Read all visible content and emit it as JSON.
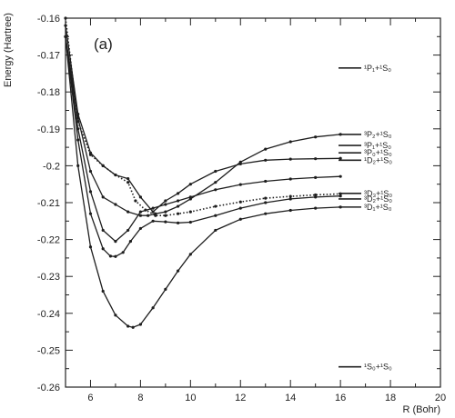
{
  "chart_data": {
    "type": "line",
    "panel_label": "(a)",
    "xlabel": "R (Bohr)",
    "ylabel": "Energy (Hartree)",
    "xlim": [
      5,
      20
    ],
    "ylim": [
      -0.26,
      -0.16
    ],
    "x_ticks": [
      6,
      8,
      10,
      12,
      14,
      16,
      18,
      20
    ],
    "x_tick_labels": [
      "6",
      "8",
      "10",
      "12",
      "14",
      "16",
      "18",
      "20"
    ],
    "y_ticks": [
      -0.16,
      -0.17,
      -0.18,
      -0.19,
      -0.2,
      -0.21,
      -0.22,
      -0.23,
      -0.24,
      -0.25,
      -0.26
    ],
    "y_tick_labels": [
      "-0.16",
      "-0.17",
      "-0.18",
      "-0.19",
      "-0.2",
      "-0.21",
      "-0.22",
      "-0.23",
      "-0.24",
      "-0.25",
      "-0.26"
    ],
    "asymptote_labels": [
      {
        "label": "¹P₁+¹S₀",
        "y": -0.1735
      },
      {
        "label": "³P₂+¹S₀",
        "y": -0.1915
      },
      {
        "label": "³P₁+¹S₀",
        "y": -0.1945
      },
      {
        "label": "³P₀+¹S₀",
        "y": -0.1965
      },
      {
        "label": "¹D₂+¹S₀",
        "y": -0.1985
      },
      {
        "label": "³D₃+¹S₀",
        "y": -0.2075
      },
      {
        "label": "³D₂+¹S₀",
        "y": -0.209
      },
      {
        "label": "³D₁+¹S₀",
        "y": -0.2112
      },
      {
        "label": "¹S₀+¹S₀",
        "y": -0.2545
      }
    ],
    "series": [
      {
        "style": "solid",
        "x": [
          5.0,
          5.5,
          6.0,
          6.5,
          7.0,
          7.5,
          7.7,
          8.0,
          8.5,
          9.0,
          9.5,
          10.0,
          11.0,
          12.0,
          13.0,
          14.0,
          15.0,
          16.0
        ],
        "y": [
          -0.165,
          -0.2,
          -0.222,
          -0.234,
          -0.2405,
          -0.2435,
          -0.2438,
          -0.243,
          -0.2385,
          -0.2335,
          -0.2285,
          -0.224,
          -0.2175,
          -0.2145,
          -0.213,
          -0.2121,
          -0.2115,
          -0.2112
        ]
      },
      {
        "style": "solid",
        "x": [
          5.0,
          5.5,
          6.0,
          6.5,
          6.8,
          7.0,
          7.3,
          7.6,
          8.0,
          8.5,
          9.0,
          9.5,
          10.0,
          11.0,
          12.0,
          13.0,
          14.0,
          15.0,
          16.0
        ],
        "y": [
          -0.165,
          -0.193,
          -0.213,
          -0.2225,
          -0.2245,
          -0.2246,
          -0.2235,
          -0.2205,
          -0.217,
          -0.215,
          -0.2152,
          -0.2155,
          -0.2153,
          -0.2135,
          -0.2115,
          -0.21,
          -0.209,
          -0.2085,
          -0.2082
        ]
      },
      {
        "style": "solid",
        "x": [
          5.0,
          5.5,
          6.0,
          6.5,
          7.0,
          7.5,
          8.0,
          8.5,
          9.0,
          9.5,
          10.0,
          11.0,
          12.0,
          13.0,
          14.0,
          15.0,
          16.0
        ],
        "y": [
          -0.165,
          -0.19,
          -0.207,
          -0.2175,
          -0.2205,
          -0.2175,
          -0.2125,
          -0.2115,
          -0.2105,
          -0.2095,
          -0.2085,
          -0.2065,
          -0.2051,
          -0.2042,
          -0.2036,
          -0.2032,
          -0.2029
        ]
      },
      {
        "style": "dotted",
        "x": [
          5.0,
          5.5,
          6.0,
          6.5,
          7.0,
          7.5,
          7.8,
          8.2,
          8.6,
          9.0,
          9.5,
          10.0,
          11.0,
          12.0,
          13.0,
          14.0,
          15.0,
          16.0
        ],
        "y": [
          -0.16,
          -0.188,
          -0.197,
          -0.2,
          -0.2025,
          -0.2045,
          -0.2095,
          -0.212,
          -0.2135,
          -0.2135,
          -0.213,
          -0.2125,
          -0.211,
          -0.2098,
          -0.2088,
          -0.2083,
          -0.2079,
          -0.2076
        ]
      },
      {
        "style": "solid",
        "x": [
          5.0,
          5.5,
          6.0,
          6.5,
          7.0,
          7.5,
          8.0,
          8.5,
          9.0,
          9.5,
          10.0,
          11.0,
          12.0,
          13.0,
          14.0,
          15.0,
          16.0
        ],
        "y": [
          -0.162,
          -0.186,
          -0.1965,
          -0.2,
          -0.2025,
          -0.2035,
          -0.2085,
          -0.2125,
          -0.2095,
          -0.2075,
          -0.205,
          -0.2015,
          -0.1995,
          -0.1985,
          -0.1982,
          -0.1981,
          -0.198
        ]
      },
      {
        "style": "solid",
        "x": [
          5.0,
          5.5,
          6.0,
          6.5,
          7.0,
          7.5,
          8.0,
          8.3,
          8.6,
          9.0,
          9.5,
          10.0,
          11.0,
          12.0,
          13.0,
          14.0,
          15.0,
          16.0
        ],
        "y": [
          -0.165,
          -0.187,
          -0.2015,
          -0.2085,
          -0.2105,
          -0.2125,
          -0.2135,
          -0.2135,
          -0.213,
          -0.2125,
          -0.211,
          -0.209,
          -0.2045,
          -0.199,
          -0.1955,
          -0.1935,
          -0.1922,
          -0.1915
        ]
      }
    ]
  }
}
